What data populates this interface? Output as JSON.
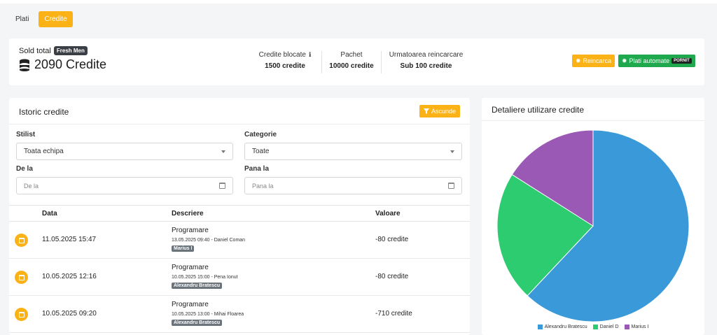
{
  "tabs": [
    {
      "label": "Plati",
      "active": false
    },
    {
      "label": "Credite",
      "active": true
    }
  ],
  "summary": {
    "sold_label": "Sold total",
    "salon_badge": "Fresh Men",
    "sold_value": "2090 Credite",
    "stats": [
      {
        "label": "Credite blocate",
        "value": "1500 credite",
        "info": "ℹ"
      },
      {
        "label": "Pachet",
        "value": "10000 credite"
      },
      {
        "label": "Urmatoarea reincarcare",
        "value": "Sub 100 credite"
      }
    ],
    "reload_button": "Reincarca",
    "auto_pay_button": "Plati automate",
    "auto_pay_status": "PORNIT"
  },
  "history": {
    "title": "Istoric credite",
    "hide_button": "Ascunde",
    "filters": {
      "stylist_label": "Stilist",
      "stylist_value": "Toata echipa",
      "category_label": "Categorie",
      "category_value": "Toate",
      "from_label": "De la",
      "from_placeholder": "De la",
      "to_label": "Pana la",
      "to_placeholder": "Pana la"
    },
    "columns": [
      "Data",
      "Descriere",
      "Valoare"
    ],
    "rows": [
      {
        "date": "11.05.2025 15:47",
        "title": "Programare",
        "sub": "13.05.2025 09:40 - Daniel Coman",
        "stylist": "Marius I",
        "value": "-80 credite"
      },
      {
        "date": "10.05.2025 12:16",
        "title": "Programare",
        "sub": "10.05.2025 15:00 - Pena Ionut",
        "stylist": "Alexandru Bratescu",
        "value": "-80 credite"
      },
      {
        "date": "10.05.2025 09:20",
        "title": "Programare",
        "sub": "10.05.2025 13:00 - Mihai Floarea",
        "stylist": "Alexandru Bratescu",
        "value": "-710 credite"
      }
    ]
  },
  "chart": {
    "title": "Detaliere utilizare credite",
    "chart_data": {
      "type": "pie",
      "series": [
        {
          "name": "Alexandru Bratescu",
          "value": 62,
          "color": "#3a9ad9"
        },
        {
          "name": "Daniel D",
          "value": 22,
          "color": "#2ecc71"
        },
        {
          "name": "Marius I",
          "value": 16,
          "color": "#9b59b6"
        }
      ],
      "legend_position": "bottom"
    }
  },
  "colors": {
    "accent": "#fbb217",
    "green": "#1fa84d"
  }
}
